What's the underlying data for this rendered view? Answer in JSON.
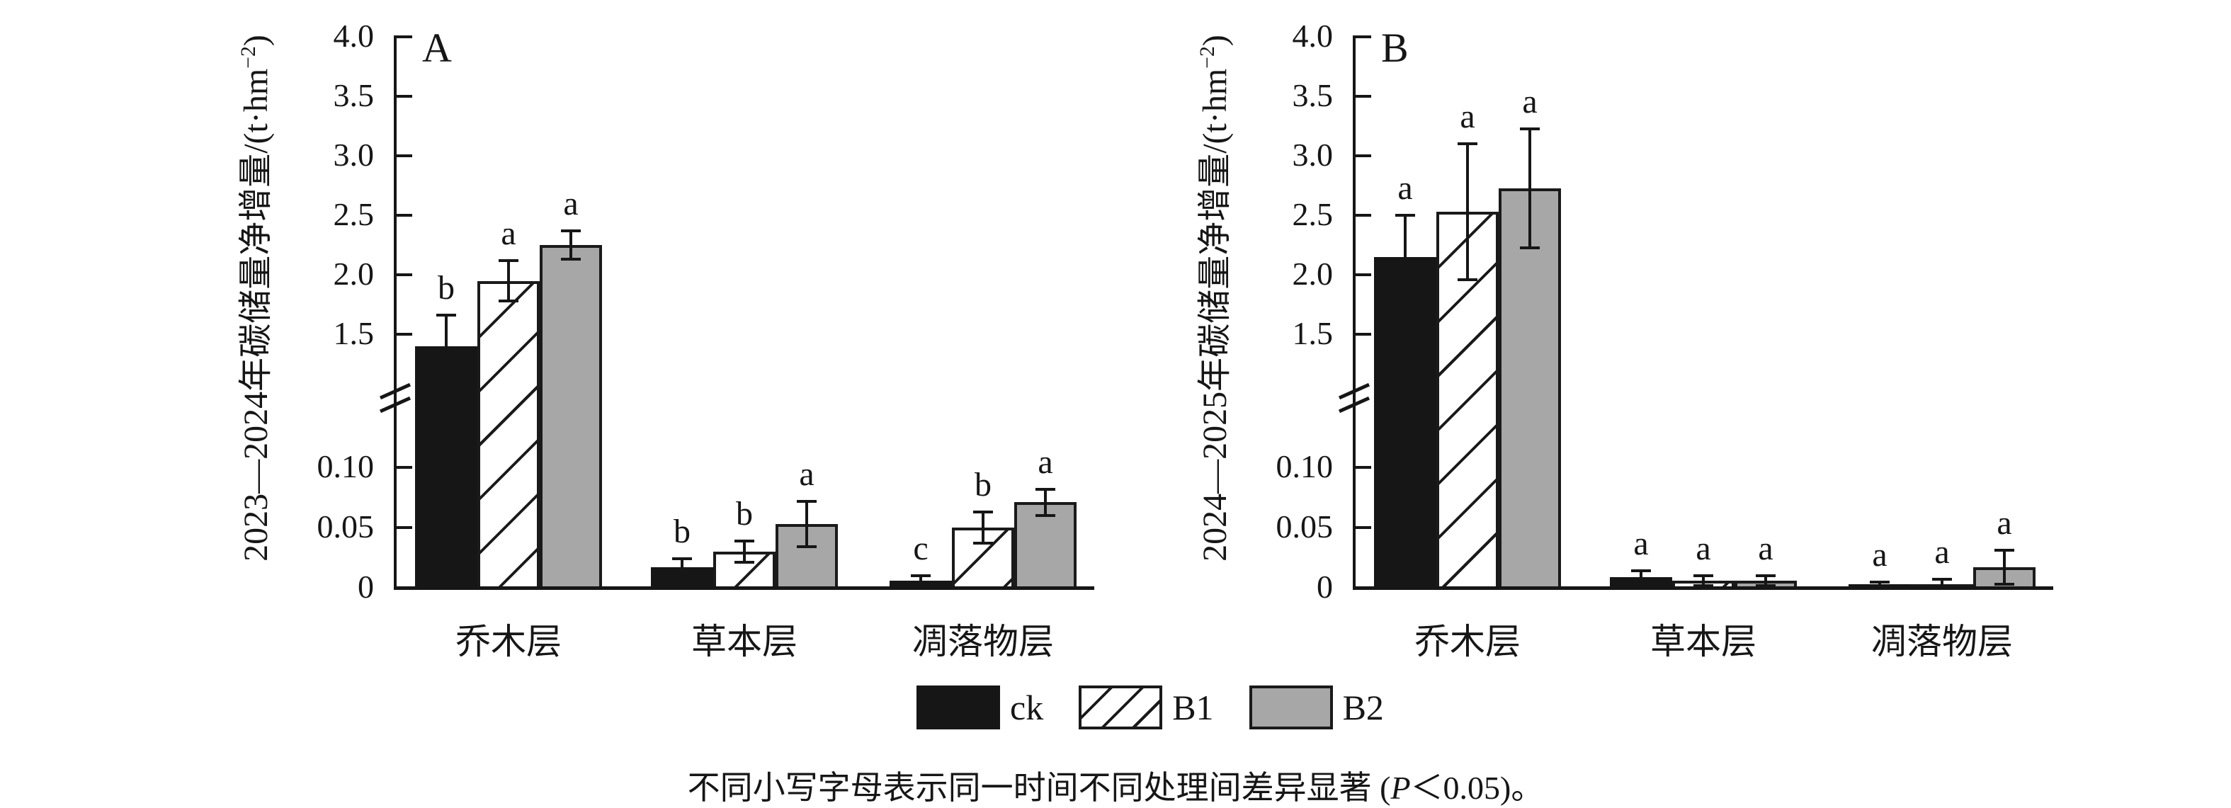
{
  "chart_data": [
    {
      "type": "bar",
      "panel": "A",
      "ylabel": {
        "pre": "2023—2024年碳储量净增量/(t·hm",
        "sup": "−2",
        "post": ")"
      },
      "categories": [
        "乔木层",
        "草本层",
        "凋落物层"
      ],
      "y_axis": {
        "upper_ticks": [
          "4.0",
          "3.5",
          "3.0",
          "2.5",
          "2.0",
          "1.5"
        ],
        "lower_ticks": [
          "0.10",
          "0.05",
          "0"
        ],
        "axis_break": true,
        "upper_range": [
          1.5,
          4.0
        ],
        "lower_range": [
          0,
          0.1
        ],
        "grid": false
      },
      "series": [
        {
          "name": "ck",
          "style": "solid-black",
          "values": [
            1.4,
            0.017,
            0.006
          ],
          "errors": [
            0.26,
            0.007,
            0.004
          ],
          "letters": [
            "b",
            "b",
            "c"
          ]
        },
        {
          "name": "B1",
          "style": "hatched",
          "values": [
            1.95,
            0.03,
            0.05
          ],
          "errors": [
            0.17,
            0.009,
            0.013
          ],
          "letters": [
            "a",
            "b",
            "b"
          ]
        },
        {
          "name": "B2",
          "style": "solid-gray",
          "values": [
            2.25,
            0.053,
            0.071
          ],
          "errors": [
            0.12,
            0.019,
            0.011
          ],
          "letters": [
            "a",
            "a",
            "a"
          ]
        }
      ]
    },
    {
      "type": "bar",
      "panel": "B",
      "ylabel": {
        "pre": "2024—2025年碳储量净增量/(t·hm",
        "sup": "−2",
        "post": ")"
      },
      "categories": [
        "乔木层",
        "草本层",
        "凋落物层"
      ],
      "y_axis": {
        "upper_ticks": [
          "4.0",
          "3.5",
          "3.0",
          "2.5",
          "2.0",
          "1.5"
        ],
        "lower_ticks": [
          "0.10",
          "0.05",
          "0"
        ],
        "axis_break": true,
        "upper_range": [
          1.5,
          4.0
        ],
        "lower_range": [
          0,
          0.1
        ],
        "grid": false
      },
      "series": [
        {
          "name": "ck",
          "style": "solid-black",
          "values": [
            2.15,
            0.009,
            0.003
          ],
          "errors": [
            0.35,
            0.005,
            0.002
          ],
          "letters": [
            "a",
            "a",
            "a"
          ]
        },
        {
          "name": "B1",
          "style": "hatched",
          "values": [
            2.53,
            0.006,
            0.003
          ],
          "errors": [
            0.57,
            0.004,
            0.004
          ],
          "letters": [
            "a",
            "a",
            "a"
          ]
        },
        {
          "name": "B2",
          "style": "solid-gray",
          "values": [
            2.73,
            0.006,
            0.017
          ],
          "errors": [
            0.5,
            0.004,
            0.014
          ],
          "letters": [
            "a",
            "a",
            "a"
          ]
        }
      ]
    }
  ],
  "legend": {
    "items": [
      {
        "label": "ck",
        "style": "solid-black"
      },
      {
        "label": "B1",
        "style": "hatched"
      },
      {
        "label": "B2",
        "style": "solid-gray"
      }
    ]
  },
  "caption": {
    "pre": "不同小写字母表示同一时间不同处理间差异显著 (",
    "italic": "P",
    "post": "＜0.05)。"
  },
  "colors": {
    "bar_black": "#161616",
    "bar_gray": "#a7a7a7",
    "line": "#161616",
    "background": "#ffffff"
  }
}
